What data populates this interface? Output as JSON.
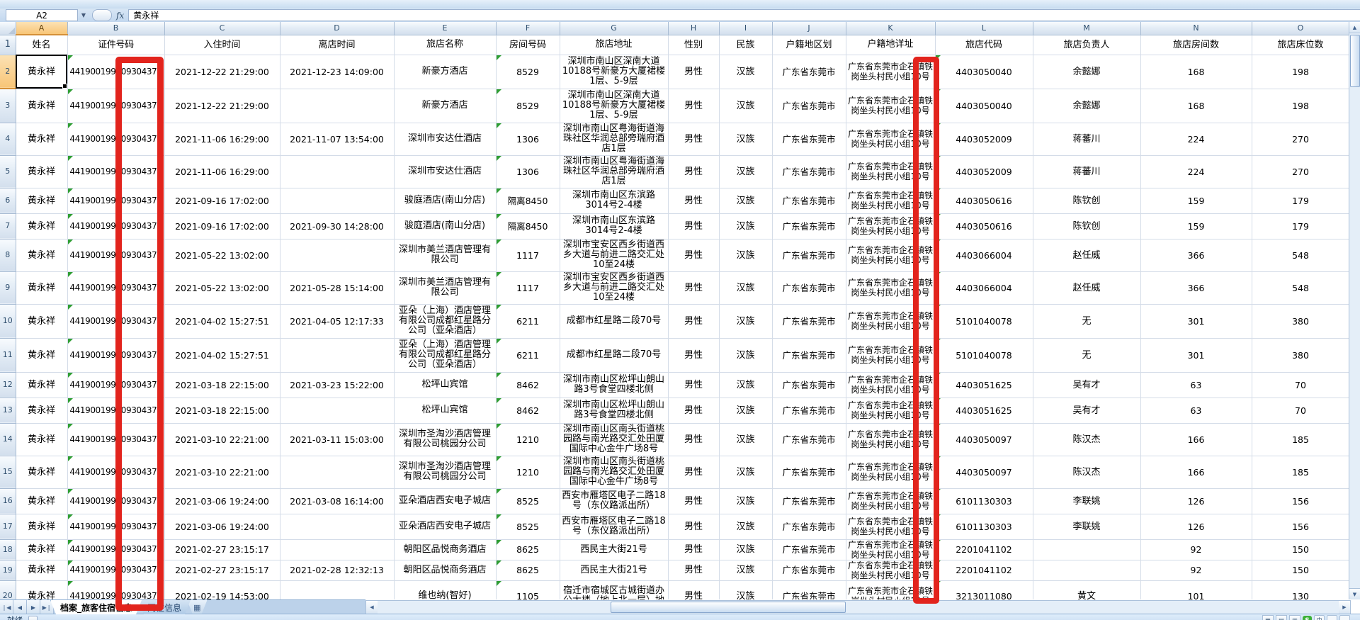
{
  "formula_bar": {
    "name_box": "A2",
    "fx_label": "fx",
    "content": "黄永祥"
  },
  "sheet": {
    "column_letters": [
      "A",
      "B",
      "C",
      "D",
      "E",
      "F",
      "G",
      "H",
      "I",
      "J",
      "K",
      "L",
      "M",
      "N",
      "O"
    ],
    "header_row": [
      "姓名",
      "证件号码",
      "入住时间",
      "离店时间",
      "旅店名称",
      "房间号码",
      "旅店地址",
      "性别",
      "民族",
      "户籍地区划",
      "户籍地详址",
      "旅店代码",
      "旅店负责人",
      "旅店房间数",
      "旅店床位数"
    ],
    "rows": [
      [
        "黄永祥",
        "441900199009304376",
        "2021-12-22 21:29:00",
        "2021-12-23 14:09:00",
        "新豪方酒店",
        "8529",
        "深圳市南山区深南大道10188号新豪方大厦裙楼1层、5-9层",
        "男性",
        "汉族",
        "广东省东莞市",
        "广东省东莞市企石镇铁岗坐头村民小组10号",
        "4403050040",
        "余懿娜",
        "168",
        "198"
      ],
      [
        "黄永祥",
        "441900199009304376",
        "2021-12-22 21:29:00",
        "",
        "新豪方酒店",
        "8529",
        "深圳市南山区深南大道10188号新豪方大厦裙楼1层、5-9层",
        "男性",
        "汉族",
        "广东省东莞市",
        "广东省东莞市企石镇铁岗坐头村民小组10号",
        "4403050040",
        "余懿娜",
        "168",
        "198"
      ],
      [
        "黄永祥",
        "441900199009304376",
        "2021-11-06 16:29:00",
        "2021-11-07 13:54:00",
        "深圳市安达仕酒店",
        "1306",
        "深圳市南山区粤海街道海珠社区华润总部旁瑞府酒店1层",
        "男性",
        "汉族",
        "广东省东莞市",
        "广东省东莞市企石镇铁岗坐头村民小组10号",
        "4403052009",
        "蒋蕃川",
        "224",
        "270"
      ],
      [
        "黄永祥",
        "441900199009304376",
        "2021-11-06 16:29:00",
        "",
        "深圳市安达仕酒店",
        "1306",
        "深圳市南山区粤海街道海珠社区华润总部旁瑞府酒店1层",
        "男性",
        "汉族",
        "广东省东莞市",
        "广东省东莞市企石镇铁岗坐头村民小组10号",
        "4403052009",
        "蒋蕃川",
        "224",
        "270"
      ],
      [
        "黄永祥",
        "441900199009304376",
        "2021-09-16 17:02:00",
        "",
        "骏庭酒店(南山分店)",
        "隔离8450",
        "深圳市南山区东滨路3014号2-4楼",
        "男性",
        "汉族",
        "广东省东莞市",
        "广东省东莞市企石镇铁岗坐头村民小组10号",
        "4403050616",
        "陈钦创",
        "159",
        "179"
      ],
      [
        "黄永祥",
        "441900199009304376",
        "2021-09-16 17:02:00",
        "2021-09-30 14:28:00",
        "骏庭酒店(南山分店)",
        "隔离8450",
        "深圳市南山区东滨路3014号2-4楼",
        "男性",
        "汉族",
        "广东省东莞市",
        "广东省东莞市企石镇铁岗坐头村民小组10号",
        "4403050616",
        "陈钦创",
        "159",
        "179"
      ],
      [
        "黄永祥",
        "441900199009304376",
        "2021-05-22 13:02:00",
        "",
        "深圳市美兰酒店管理有限公司",
        "1117",
        "深圳市宝安区西乡街道西乡大道与前进二路交汇处10至24楼",
        "男性",
        "汉族",
        "广东省东莞市",
        "广东省东莞市企石镇铁岗坐头村民小组10号",
        "4403066004",
        "赵任威",
        "366",
        "548"
      ],
      [
        "黄永祥",
        "441900199009304376",
        "2021-05-22 13:02:00",
        "2021-05-28 15:14:00",
        "深圳市美兰酒店管理有限公司",
        "1117",
        "深圳市宝安区西乡街道西乡大道与前进二路交汇处10至24楼",
        "男性",
        "汉族",
        "广东省东莞市",
        "广东省东莞市企石镇铁岗坐头村民小组10号",
        "4403066004",
        "赵任威",
        "366",
        "548"
      ],
      [
        "黄永祥",
        "441900199009304376",
        "2021-04-02 15:27:51",
        "2021-04-05 12:17:33",
        "亚朵（上海）酒店管理有限公司成都红星路分公司（亚朵酒店）",
        "6211",
        "成都市红星路二段70号",
        "男性",
        "汉族",
        "广东省东莞市",
        "广东省东莞市企石镇铁岗坐头村民小组10号",
        "5101040078",
        "无",
        "301",
        "380"
      ],
      [
        "黄永祥",
        "441900199009304376",
        "2021-04-02 15:27:51",
        "",
        "亚朵（上海）酒店管理有限公司成都红星路分公司（亚朵酒店）",
        "6211",
        "成都市红星路二段70号",
        "男性",
        "汉族",
        "广东省东莞市",
        "广东省东莞市企石镇铁岗坐头村民小组10号",
        "5101040078",
        "无",
        "301",
        "380"
      ],
      [
        "黄永祥",
        "441900199009304376",
        "2021-03-18 22:15:00",
        "2021-03-23 15:22:00",
        "松坪山宾馆",
        "8462",
        "深圳市南山区松坪山朗山路3号食堂四楼北侧",
        "男性",
        "汉族",
        "广东省东莞市",
        "广东省东莞市企石镇铁岗坐头村民小组10号",
        "4403051625",
        "吴有才",
        "63",
        "70"
      ],
      [
        "黄永祥",
        "441900199009304376",
        "2021-03-18 22:15:00",
        "",
        "松坪山宾馆",
        "8462",
        "深圳市南山区松坪山朗山路3号食堂四楼北侧",
        "男性",
        "汉族",
        "广东省东莞市",
        "广东省东莞市企石镇铁岗坐头村民小组10号",
        "4403051625",
        "吴有才",
        "63",
        "70"
      ],
      [
        "黄永祥",
        "441900199009304376",
        "2021-03-10 22:21:00",
        "2021-03-11 15:03:00",
        "深圳市圣淘沙酒店管理有限公司桃园分公司",
        "1210",
        "深圳市南山区南头街道桃园路与南光路交汇处田厦国际中心金牛广场8号",
        "男性",
        "汉族",
        "广东省东莞市",
        "广东省东莞市企石镇铁岗坐头村民小组10号",
        "4403050097",
        "陈汉杰",
        "166",
        "185"
      ],
      [
        "黄永祥",
        "441900199009304376",
        "2021-03-10 22:21:00",
        "",
        "深圳市圣淘沙酒店管理有限公司桃园分公司",
        "1210",
        "深圳市南山区南头街道桃园路与南光路交汇处田厦国际中心金牛广场8号",
        "男性",
        "汉族",
        "广东省东莞市",
        "广东省东莞市企石镇铁岗坐头村民小组10号",
        "4403050097",
        "陈汉杰",
        "166",
        "185"
      ],
      [
        "黄永祥",
        "441900199009304376",
        "2021-03-06 19:24:00",
        "2021-03-08 16:14:00",
        "亚朵酒店西安电子城店",
        "8525",
        "西安市雁塔区电子二路18号（东仪路派出所）",
        "男性",
        "汉族",
        "广东省东莞市",
        "广东省东莞市企石镇铁岗坐头村民小组10号",
        "6101130303",
        "李联姚",
        "126",
        "156"
      ],
      [
        "黄永祥",
        "441900199009304376",
        "2021-03-06 19:24:00",
        "",
        "亚朵酒店西安电子城店",
        "8525",
        "西安市雁塔区电子二路18号（东仪路派出所）",
        "男性",
        "汉族",
        "广东省东莞市",
        "广东省东莞市企石镇铁岗坐头村民小组10号",
        "6101130303",
        "李联姚",
        "126",
        "156"
      ],
      [
        "黄永祥",
        "441900199009304376",
        "2021-02-27 23:15:17",
        "",
        "朝阳区品悦商务酒店",
        "8625",
        "西民主大街21号",
        "男性",
        "汉族",
        "广东省东莞市",
        "广东省东莞市企石镇铁岗坐头村民小组10号",
        "2201041102",
        "",
        "92",
        "150"
      ],
      [
        "黄永祥",
        "441900199009304376",
        "2021-02-27 23:15:17",
        "2021-02-28 12:32:13",
        "朝阳区品悦商务酒店",
        "8625",
        "西民主大街21号",
        "男性",
        "汉族",
        "广东省东莞市",
        "广东省东莞市企石镇铁岗坐头村民小组10号",
        "2201041102",
        "",
        "92",
        "150"
      ]
    ],
    "partial_row": [
      "黄永祥",
      "441900199009304376",
      "2021-02-19 14:53:00",
      "",
      "维也纳(智好)",
      "1105",
      "宿迁市宿城区古城街道办公大楼（地上北一层）地",
      "男性",
      "汉族",
      "广东省东莞市",
      "广东省东莞市企石镇铁岗坐头村民小组10号",
      "3213011080",
      "黄文",
      "101",
      "130"
    ]
  },
  "tabs": {
    "sheets": [
      {
        "label": "档案_旅客住宿信息",
        "active": true
      },
      {
        "label": "同住信息",
        "active": false
      }
    ],
    "insert_glyph": "▦"
  },
  "scroll": {
    "up": "▲",
    "down": "▼",
    "left": "◀",
    "right": "▶"
  },
  "status_bar": {
    "ready": "就绪",
    "sogou": "S",
    "lang": "中",
    "view1": "▦",
    "view2": "▤",
    "view3": "▥"
  },
  "annotations": {
    "red_box_color": "#E2241D"
  }
}
